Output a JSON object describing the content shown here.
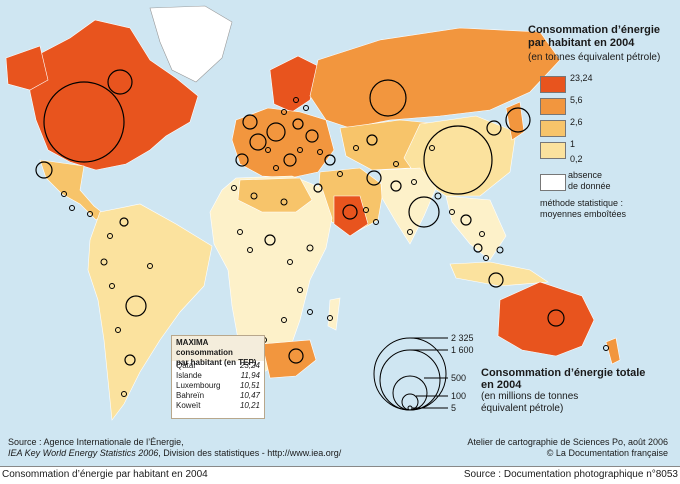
{
  "legend": {
    "title_line1": "Consommation d’énergie",
    "title_line2": "par habitant en 2004",
    "subtitle": "(en tonnes équivalent pétrole)",
    "classes": [
      {
        "label": "23,24",
        "color": "#e8541e"
      },
      {
        "label": "5,6",
        "color": "#f2963e"
      },
      {
        "label": "2,6",
        "color": "#f7c46a"
      },
      {
        "label": "1",
        "color": "#fbe29e"
      },
      {
        "label": "0,2",
        "color": "#fdf1c9"
      }
    ],
    "absence_line1": "absence",
    "absence_line2": "de donnée",
    "method_line1": "méthode statistique :",
    "method_line2": "moyennes emboîtées"
  },
  "maxima": {
    "title_line1": "MAXIMA consommation",
    "title_line2": "par habitant (en TEP)",
    "rows": [
      {
        "country": "Qatar",
        "value": "23,24"
      },
      {
        "country": "Islande",
        "value": "11,94"
      },
      {
        "country": "Luxembourg",
        "value": "10,51"
      },
      {
        "country": "Bahreïn",
        "value": "10,47"
      },
      {
        "country": "Koweït",
        "value": "10,21"
      }
    ]
  },
  "total": {
    "title_line1": "Consommation d’énergie totale",
    "title_line2": "en 2004",
    "sub_line1": "(en millions de tonnes",
    "sub_line2": "équivalent pétrole)",
    "scale": [
      "2 325",
      "1 600",
      "500",
      "100",
      "5"
    ]
  },
  "source": {
    "line1": "Source : Agence Internationale de l’Énergie,",
    "line2_italic": "IEA Key World Energy Statistics 2006",
    "line2_rest": ", Division des statistiques - http://www.iea.org/"
  },
  "atelier": {
    "line1": "Atelier de cartographie de Sciences Po, août 2006",
    "line2": "© La Documentation française"
  },
  "footer": {
    "caption": "Consommation d’énergie par habitant en 2004",
    "credit": "Source : Documentation photographique n°8053"
  }
}
